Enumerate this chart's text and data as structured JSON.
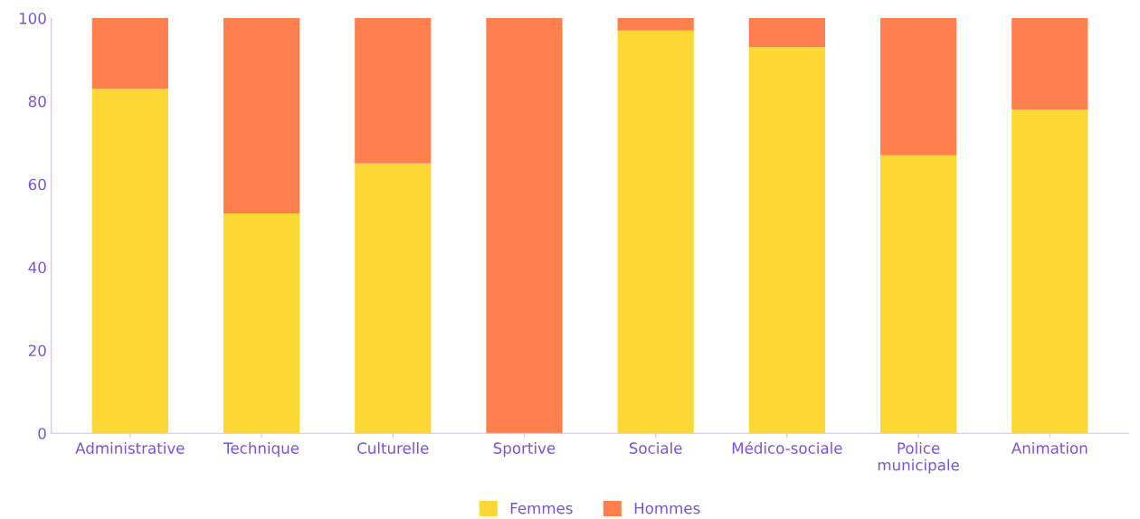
{
  "chart_data": {
    "type": "bar",
    "stacked": true,
    "categories": [
      "Administrative",
      "Technique",
      "Culturelle",
      "Sportive",
      "Sociale",
      "Médico-sociale",
      "Police\nmunicipale",
      "Animation"
    ],
    "series": [
      {
        "name": "Femmes",
        "color": "#fdd835",
        "values": [
          83,
          53,
          65,
          0,
          97,
          93,
          67,
          78
        ]
      },
      {
        "name": "Hommes",
        "color": "#ff7f4f",
        "values": [
          17,
          47,
          35,
          100,
          3,
          7,
          33,
          22
        ]
      }
    ],
    "ylim": [
      0,
      100
    ],
    "yticks": [
      0,
      20,
      40,
      60,
      80,
      100
    ],
    "grid": false,
    "legend": "bottom"
  }
}
